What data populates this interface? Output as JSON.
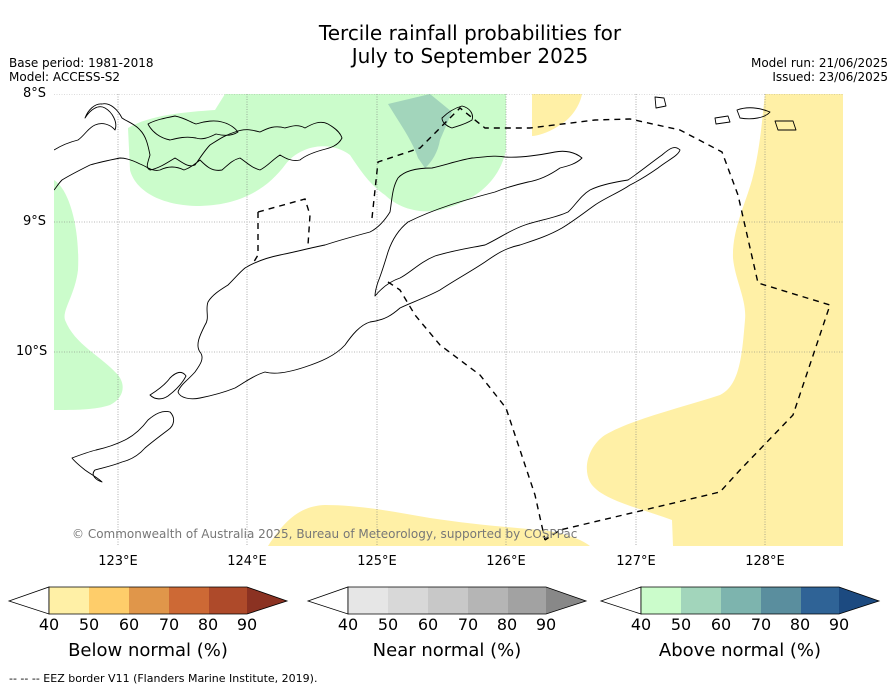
{
  "title_line1": "Tercile rainfall probabilities for",
  "title_line2": "July to September 2025",
  "base_period": "Base period: 1981-2018",
  "model": "Model: ACCESS-S2",
  "model_run": "Model run: 21/06/2025",
  "issued": "Issued: 23/06/2025",
  "lat_labels": [
    "8°S",
    "9°S",
    "10°S"
  ],
  "lon_labels": [
    "123°E",
    "124°E",
    "125°E",
    "126°E",
    "127°E",
    "128°E"
  ],
  "copyright": "© Commonwealth of Australia 2025, Bureau of Meteorology, supported by COSPPac",
  "colorbars": [
    {
      "label": "Below normal (%)",
      "ticks": [
        "40",
        "50",
        "60",
        "70",
        "80",
        "90"
      ],
      "colors": [
        "#fff0a6",
        "#fecd6a",
        "#e0964a",
        "#cd6935",
        "#ae4a2a",
        "#8b3222"
      ]
    },
    {
      "label": "Near normal (%)",
      "ticks": [
        "40",
        "50",
        "60",
        "70",
        "80",
        "90"
      ],
      "colors": [
        "#e6e6e6",
        "#d8d8d8",
        "#c8c8c8",
        "#b5b5b5",
        "#a2a2a2",
        "#888888"
      ]
    },
    {
      "label": "Above normal (%)",
      "ticks": [
        "40",
        "50",
        "60",
        "70",
        "80",
        "90"
      ],
      "colors": [
        "#cbfccb",
        "#a2d5bb",
        "#7db4ae",
        "#5a8e9e",
        "#2f6396",
        "#1c4a80"
      ]
    }
  ],
  "footer": "--  --  -- EEZ border V11 (Flanders Marine Institute, 2019).",
  "colors": {
    "below_normal_50": "#fff0a6",
    "above_normal_50": "#cbfccb",
    "above_normal_60": "#a2d5bb"
  }
}
